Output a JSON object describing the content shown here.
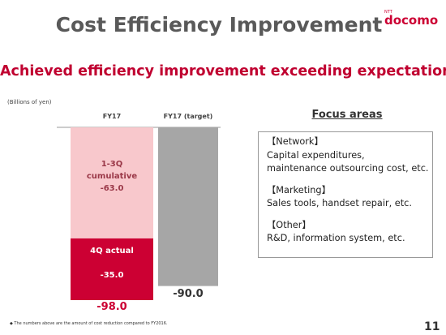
{
  "header": {
    "title": "Cost Efficiency Improvement",
    "logo_small": "NTT",
    "logo": "docomo"
  },
  "subtitle": "Achieved efficiency improvement exceeding expectations",
  "chart_data": {
    "type": "bar",
    "stacked": true,
    "y_label": "(Billions of yen)",
    "categories": [
      "FY17",
      "FY17 (target)"
    ],
    "series": [
      {
        "name": "1-3Q cumulative",
        "color": "#f8c8cc",
        "values": [
          -63.0,
          null
        ],
        "value_labels": [
          "-63.0",
          null
        ]
      },
      {
        "name": "4Q actual",
        "color": "#cc0033",
        "values": [
          -35.0,
          null
        ],
        "value_labels": [
          "-35.0",
          null
        ]
      },
      {
        "color": "#a6a6a6",
        "values": [
          null,
          -90.0
        ],
        "value_labels": [
          null,
          "-90.0"
        ]
      }
    ],
    "totals": [
      -98.0,
      null
    ],
    "total_labels": [
      "-98.0",
      null
    ],
    "ylim": [
      -98,
      0
    ]
  },
  "focus": {
    "title": "Focus areas",
    "groups": [
      {
        "heading": "【Network】",
        "lines": [
          "Capital expenditures,",
          "maintenance outsourcing cost, etc."
        ]
      },
      {
        "heading": "【Marketing】",
        "lines": [
          "Sales tools, handset repair, etc."
        ]
      },
      {
        "heading": "【Other】",
        "lines": [
          "R&D, information system, etc."
        ]
      }
    ]
  },
  "footnote": "◆ The numbers above are the amount of cost reduction compared to FY2016.",
  "page_number": "11"
}
